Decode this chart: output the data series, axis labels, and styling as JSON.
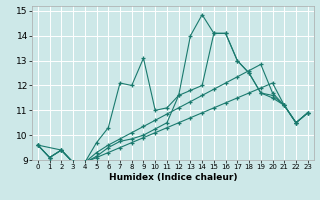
{
  "xlabel": "Humidex (Indice chaleur)",
  "bg_color": "#cde8e8",
  "grid_color": "#ffffff",
  "line_color": "#1a7a6e",
  "xlim": [
    -0.5,
    23.5
  ],
  "ylim": [
    9,
    15.2
  ],
  "xticks": [
    0,
    1,
    2,
    3,
    4,
    5,
    6,
    7,
    8,
    9,
    10,
    11,
    12,
    13,
    14,
    15,
    16,
    17,
    18,
    19,
    20,
    21,
    22,
    23
  ],
  "yticks": [
    9,
    10,
    11,
    12,
    13,
    14,
    15
  ],
  "lines": [
    {
      "x": [
        0,
        1,
        2,
        3,
        4,
        5,
        6,
        7,
        8,
        9,
        10,
        11,
        12,
        13,
        14,
        15,
        16,
        17,
        18,
        19,
        20,
        21,
        22,
        23
      ],
      "y": [
        9.6,
        9.1,
        9.4,
        8.9,
        8.9,
        9.7,
        10.3,
        12.1,
        12.0,
        13.1,
        11.0,
        11.1,
        11.6,
        14.0,
        14.85,
        14.1,
        14.1,
        13.0,
        12.5,
        11.7,
        11.5,
        11.2,
        10.5,
        10.9
      ]
    },
    {
      "x": [
        0,
        1,
        2,
        3,
        4,
        5,
        6,
        7,
        8,
        9,
        10,
        11,
        12,
        13,
        14,
        15,
        16,
        17,
        18,
        19,
        20,
        21,
        22,
        23
      ],
      "y": [
        9.6,
        9.1,
        9.4,
        8.9,
        8.9,
        9.3,
        9.6,
        9.85,
        10.1,
        10.35,
        10.6,
        10.85,
        11.1,
        11.35,
        11.6,
        11.85,
        12.1,
        12.35,
        12.6,
        12.85,
        11.7,
        11.2,
        10.5,
        10.9
      ]
    },
    {
      "x": [
        0,
        1,
        2,
        3,
        4,
        5,
        6,
        7,
        8,
        9,
        10,
        11,
        12,
        13,
        14,
        15,
        16,
        17,
        18,
        19,
        20,
        21,
        22,
        23
      ],
      "y": [
        9.6,
        9.1,
        9.4,
        8.9,
        8.9,
        9.1,
        9.3,
        9.5,
        9.7,
        9.9,
        10.1,
        10.3,
        10.5,
        10.7,
        10.9,
        11.1,
        11.3,
        11.5,
        11.7,
        11.9,
        12.1,
        11.2,
        10.5,
        10.9
      ]
    },
    {
      "x": [
        0,
        2,
        3,
        4,
        5,
        6,
        7,
        8,
        9,
        10,
        11,
        12,
        13,
        14,
        15,
        16,
        17,
        18,
        19,
        20,
        21,
        22,
        23
      ],
      "y": [
        9.6,
        9.4,
        8.9,
        8.9,
        9.15,
        9.5,
        9.75,
        9.85,
        10.0,
        10.25,
        10.5,
        11.6,
        11.8,
        12.0,
        14.1,
        14.1,
        13.0,
        12.5,
        11.7,
        11.6,
        11.2,
        10.5,
        10.9
      ]
    }
  ]
}
